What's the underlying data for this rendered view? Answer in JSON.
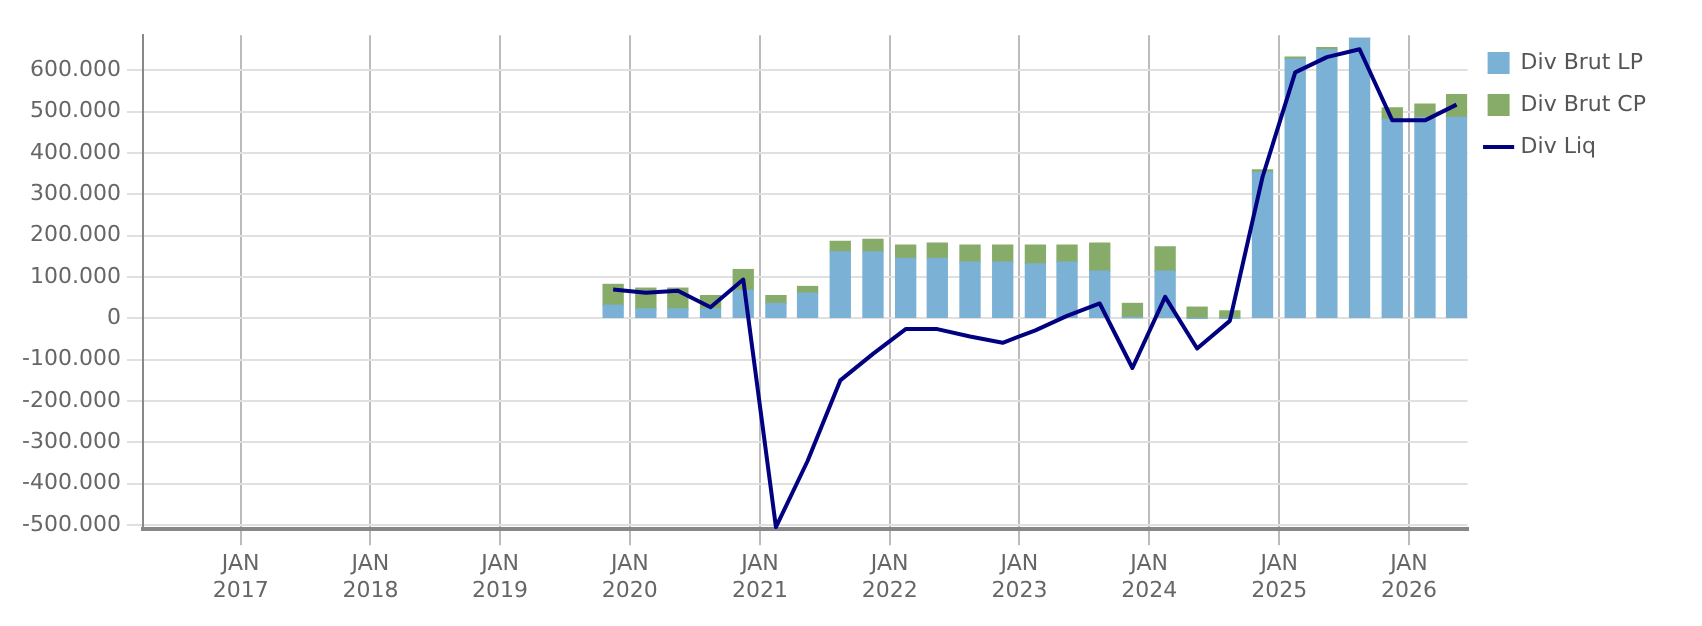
{
  "chart_data": {
    "type": "bar",
    "stacked": true,
    "x": [
      "2019-11-15",
      "2020-02-15",
      "2020-05-15",
      "2020-08-15",
      "2020-11-15",
      "2021-02-15",
      "2021-05-15",
      "2021-08-15",
      "2021-11-15",
      "2022-02-15",
      "2022-05-15",
      "2022-08-15",
      "2022-11-15",
      "2023-02-15",
      "2023-05-15",
      "2023-08-15",
      "2023-11-15",
      "2024-02-15",
      "2024-05-15",
      "2024-08-15",
      "2024-11-15",
      "2025-02-15",
      "2025-05-15",
      "2025-08-15",
      "2025-11-15",
      "2026-02-15",
      "2026-05-15"
    ],
    "series": [
      {
        "name": "Div Brut LP",
        "color": "#7ab1d5",
        "values": [
          32000,
          23000,
          23000,
          23000,
          68000,
          36000,
          61000,
          161000,
          161000,
          145000,
          145000,
          136000,
          136000,
          132000,
          136000,
          114000,
          2000,
          114000,
          0,
          0,
          353000,
          627000,
          650000,
          677000,
          482000,
          486000,
          486000
        ]
      },
      {
        "name": "Div Brut CP",
        "color": "#87ac69",
        "values": [
          50000,
          50000,
          50000,
          32000,
          50000,
          19000,
          16000,
          25000,
          30000,
          32000,
          37000,
          41000,
          41000,
          45000,
          41000,
          68000,
          34000,
          59000,
          27000,
          18000,
          6000,
          5000,
          5000,
          0,
          27000,
          32000,
          55000
        ]
      },
      {
        "name": "Div Liq",
        "type": "line",
        "color": "#000080",
        "values": [
          70000,
          62000,
          67000,
          27000,
          94000,
          -505000,
          -345000,
          -150000,
          -86000,
          -26000,
          -26000,
          -44000,
          -59000,
          -29000,
          6000,
          36000,
          -120000,
          52000,
          -73000,
          -6000,
          342000,
          595000,
          632000,
          651000,
          479000,
          479000,
          517000
        ]
      }
    ],
    "xlim": [
      "2016-04-01",
      "2026-06-15"
    ],
    "xticks": [
      {
        "value": "2017-01-01",
        "label": "JAN 2017"
      },
      {
        "value": "2018-01-01",
        "label": "JAN 2018"
      },
      {
        "value": "2019-01-01",
        "label": "JAN 2019"
      },
      {
        "value": "2020-01-01",
        "label": "JAN 2020"
      },
      {
        "value": "2021-01-01",
        "label": "JAN 2021"
      },
      {
        "value": "2022-01-01",
        "label": "JAN 2022"
      },
      {
        "value": "2023-01-01",
        "label": "JAN 2023"
      },
      {
        "value": "2024-01-01",
        "label": "JAN 2024"
      },
      {
        "value": "2025-01-01",
        "label": "JAN 2025"
      },
      {
        "value": "2026-01-01",
        "label": "JAN 2026"
      }
    ],
    "ylim": [
      -510000,
      685000
    ],
    "yticks": [
      {
        "value": -500000,
        "label": "-500.000"
      },
      {
        "value": -400000,
        "label": "-400.000"
      },
      {
        "value": -300000,
        "label": "-300.000"
      },
      {
        "value": -200000,
        "label": "-200.000"
      },
      {
        "value": -100000,
        "label": "-100.000"
      },
      0,
      {
        "value": 100000,
        "label": "100.000"
      },
      {
        "value": 200000,
        "label": "200.000"
      },
      {
        "value": 300000,
        "label": "300.000"
      },
      {
        "value": 400000,
        "label": "400.000"
      },
      {
        "value": 500000,
        "label": "500.000"
      },
      {
        "value": 600000,
        "label": "600.000"
      }
    ],
    "grid": true,
    "legend": "top right"
  }
}
